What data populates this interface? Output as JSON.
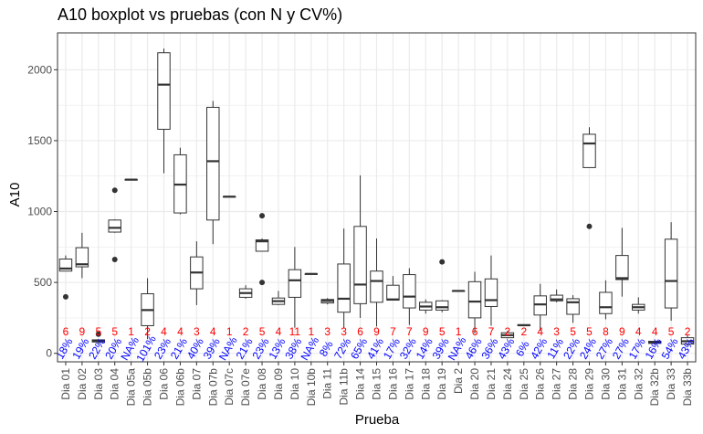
{
  "chart_data": {
    "type": "boxplot",
    "title": "A10 boxplot vs pruebas (con N y CV%)",
    "xlabel": "Prueba",
    "ylabel": "A10",
    "ylim": [
      -60,
      2260
    ],
    "yticks": [
      0,
      500,
      1000,
      1500,
      2000
    ],
    "colors": {
      "n_label": "#ff0000",
      "cv_label": "#0000ff",
      "box_stroke": "#333333",
      "grid": "#ebebeb"
    },
    "boxes": [
      {
        "label": "Dia 01",
        "n": "6",
        "cv": "18%",
        "min": 580,
        "q1": 580,
        "median": 598,
        "q3": 665,
        "max": 690,
        "outliers": [
          398
        ]
      },
      {
        "label": "Dia 02",
        "n": "9",
        "cv": "19%",
        "min": 530,
        "q1": 610,
        "median": 628,
        "q3": 745,
        "max": 850,
        "outliers": []
      },
      {
        "label": "Dia 03",
        "n": "5",
        "cv": "22%",
        "min": 70,
        "q1": 80,
        "median": 88,
        "q3": 95,
        "max": 100,
        "outliers": [
          135
        ]
      },
      {
        "label": "Dia 04",
        "n": "5",
        "cv": "20%",
        "min": 850,
        "q1": 855,
        "median": 885,
        "q3": 940,
        "max": 945,
        "outliers": [
          1150,
          662
        ]
      },
      {
        "label": "Dia 05a",
        "n": "1",
        "cv": "NA%",
        "min": 1225,
        "q1": 1225,
        "median": 1225,
        "q3": 1225,
        "max": 1225,
        "outliers": []
      },
      {
        "label": "Dia 05b",
        "n": "2",
        "cv": "101%",
        "min": 100,
        "q1": 195,
        "median": 305,
        "q3": 420,
        "max": 530,
        "outliers": []
      },
      {
        "label": "Dia 06",
        "n": "4",
        "cv": "23%",
        "min": 1270,
        "q1": 1580,
        "median": 1895,
        "q3": 2120,
        "max": 2150,
        "outliers": []
      },
      {
        "label": "Dia 06b",
        "n": "4",
        "cv": "21%",
        "min": 980,
        "q1": 990,
        "median": 1190,
        "q3": 1400,
        "max": 1450,
        "outliers": []
      },
      {
        "label": "Dia 07",
        "n": "3",
        "cv": "40%",
        "min": 340,
        "q1": 455,
        "median": 570,
        "q3": 680,
        "max": 790,
        "outliers": []
      },
      {
        "label": "Dia 07b",
        "n": "4",
        "cv": "39%",
        "min": 770,
        "q1": 940,
        "median": 1355,
        "q3": 1735,
        "max": 1780,
        "outliers": []
      },
      {
        "label": "Dia 07c",
        "n": "1",
        "cv": "NA%",
        "min": 1105,
        "q1": 1105,
        "median": 1105,
        "q3": 1105,
        "max": 1105,
        "outliers": []
      },
      {
        "label": "Dia 07e",
        "n": "2",
        "cv": "21%",
        "min": 385,
        "q1": 395,
        "median": 425,
        "q3": 455,
        "max": 480,
        "outliers": []
      },
      {
        "label": "Dia 08",
        "n": "5",
        "cv": "23%",
        "min": 720,
        "q1": 720,
        "median": 790,
        "q3": 800,
        "max": 810,
        "outliers": [
          970,
          500
        ]
      },
      {
        "label": "Dia 09",
        "n": "4",
        "cv": "13%",
        "min": 340,
        "q1": 345,
        "median": 368,
        "q3": 390,
        "max": 440,
        "outliers": []
      },
      {
        "label": "Dia 10",
        "n": "11",
        "cv": "38%",
        "min": 180,
        "q1": 395,
        "median": 515,
        "q3": 590,
        "max": 750,
        "outliers": []
      },
      {
        "label": "Dia 10b",
        "n": "1",
        "cv": "NA%",
        "min": 560,
        "q1": 560,
        "median": 560,
        "q3": 560,
        "max": 560,
        "outliers": []
      },
      {
        "label": "Dia 11",
        "n": "3",
        "cv": "8%",
        "min": 345,
        "q1": 355,
        "median": 370,
        "q3": 380,
        "max": 390,
        "outliers": []
      },
      {
        "label": "Dia 11b",
        "n": "3",
        "cv": "72%",
        "min": 180,
        "q1": 290,
        "median": 385,
        "q3": 630,
        "max": 880,
        "outliers": []
      },
      {
        "label": "Dia 14",
        "n": "6",
        "cv": "65%",
        "min": 250,
        "q1": 350,
        "median": 485,
        "q3": 895,
        "max": 1255,
        "outliers": []
      },
      {
        "label": "Dia 15",
        "n": "9",
        "cv": "41%",
        "min": 190,
        "q1": 360,
        "median": 510,
        "q3": 580,
        "max": 810,
        "outliers": []
      },
      {
        "label": "Dia 16",
        "n": "7",
        "cv": "17%",
        "min": 375,
        "q1": 375,
        "median": 380,
        "q3": 480,
        "max": 545,
        "outliers": []
      },
      {
        "label": "Dia 17",
        "n": "7",
        "cv": "32%",
        "min": 200,
        "q1": 320,
        "median": 400,
        "q3": 555,
        "max": 600,
        "outliers": []
      },
      {
        "label": "Dia 18",
        "n": "9",
        "cv": "14%",
        "min": 280,
        "q1": 305,
        "median": 330,
        "q3": 360,
        "max": 380,
        "outliers": []
      },
      {
        "label": "Dia 19",
        "n": "5",
        "cv": "39%",
        "min": 290,
        "q1": 305,
        "median": 325,
        "q3": 370,
        "max": 375,
        "outliers": [
          645
        ]
      },
      {
        "label": "Dia 2",
        "n": "1",
        "cv": "NA%",
        "min": 440,
        "q1": 440,
        "median": 440,
        "q3": 440,
        "max": 440,
        "outliers": []
      },
      {
        "label": "Dia 20",
        "n": "6",
        "cv": "46%",
        "min": 140,
        "q1": 250,
        "median": 365,
        "q3": 505,
        "max": 575,
        "outliers": []
      },
      {
        "label": "Dia 21",
        "n": "7",
        "cv": "36%",
        "min": 195,
        "q1": 330,
        "median": 375,
        "q3": 525,
        "max": 690,
        "outliers": []
      },
      {
        "label": "Dia 24",
        "n": "2",
        "cv": "43%",
        "min": 105,
        "q1": 110,
        "median": 128,
        "q3": 145,
        "max": 160,
        "outliers": []
      },
      {
        "label": "Dia 25",
        "n": "2",
        "cv": "6%",
        "min": 192,
        "q1": 195,
        "median": 198,
        "q3": 202,
        "max": 205,
        "outliers": []
      },
      {
        "label": "Dia 26",
        "n": "4",
        "cv": "42%",
        "min": 160,
        "q1": 270,
        "median": 345,
        "q3": 405,
        "max": 490,
        "outliers": []
      },
      {
        "label": "Dia 27",
        "n": "3",
        "cv": "11%",
        "min": 360,
        "q1": 370,
        "median": 380,
        "q3": 410,
        "max": 450,
        "outliers": []
      },
      {
        "label": "Dia 28",
        "n": "5",
        "cv": "22%",
        "min": 215,
        "q1": 275,
        "median": 360,
        "q3": 385,
        "max": 410,
        "outliers": []
      },
      {
        "label": "Dia 29",
        "n": "5",
        "cv": "24%",
        "min": 1310,
        "q1": 1310,
        "median": 1480,
        "q3": 1545,
        "max": 1595,
        "outliers": [
          895
        ]
      },
      {
        "label": "Dia 30",
        "n": "8",
        "cv": "27%",
        "min": 240,
        "q1": 280,
        "median": 325,
        "q3": 430,
        "max": 515,
        "outliers": []
      },
      {
        "label": "Dia 31",
        "n": "9",
        "cv": "27%",
        "min": 400,
        "q1": 520,
        "median": 530,
        "q3": 690,
        "max": 885,
        "outliers": []
      },
      {
        "label": "Dia 32",
        "n": "4",
        "cv": "17%",
        "min": 280,
        "q1": 305,
        "median": 325,
        "q3": 345,
        "max": 395,
        "outliers": []
      },
      {
        "label": "Dia 32b",
        "n": "4",
        "cv": "16%",
        "min": 60,
        "q1": 70,
        "median": 78,
        "q3": 85,
        "max": 92,
        "outliers": []
      },
      {
        "label": "Dia 33",
        "n": "5",
        "cv": "54%",
        "min": 230,
        "q1": 320,
        "median": 510,
        "q3": 805,
        "max": 925,
        "outliers": []
      },
      {
        "label": "Dia 33b",
        "n": "2",
        "cv": "43%",
        "min": 55,
        "q1": 65,
        "median": 85,
        "q3": 110,
        "max": 130,
        "outliers": []
      }
    ]
  }
}
